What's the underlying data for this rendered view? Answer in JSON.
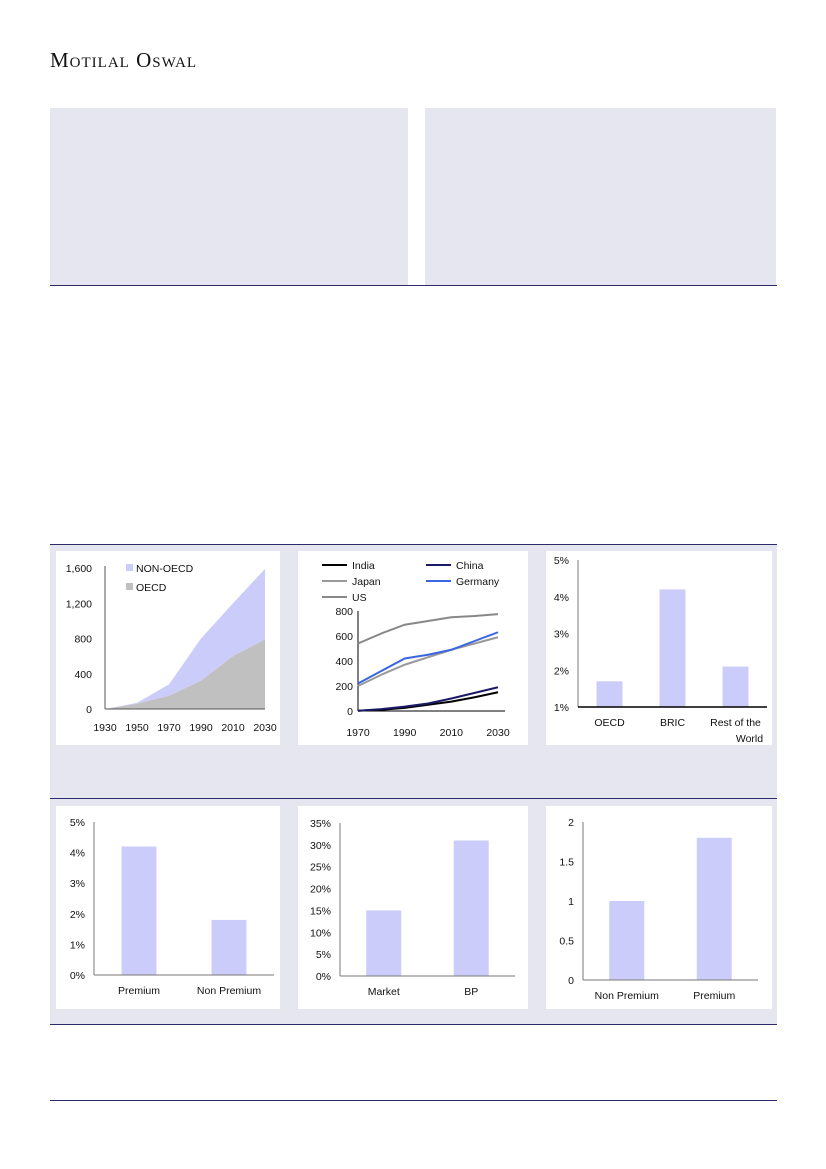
{
  "header": {
    "brand": "Motilal Oswal"
  },
  "colors": {
    "bar": "#ccccfa",
    "non_oecd": "#ccccfa",
    "oecd": "#c0c0c0",
    "rule": "#2b2b6b",
    "box": "#e6e6f0"
  },
  "chart_data": [
    {
      "type": "area",
      "x": [
        1930,
        1950,
        1970,
        1990,
        2010,
        2030
      ],
      "xticks": [
        "1930",
        "1950",
        "1970",
        "1990",
        "2010",
        "2030"
      ],
      "yticks": [
        "0",
        "400",
        "800",
        "1,200",
        "1,600"
      ],
      "ylim": [
        0,
        1600
      ],
      "series": [
        {
          "name": "OECD",
          "values": [
            0,
            60,
            150,
            320,
            600,
            790
          ]
        },
        {
          "name": "NON-OECD",
          "values": [
            0,
            10,
            130,
            480,
            600,
            800
          ]
        }
      ],
      "legend": [
        "NON-OECD",
        "OECD"
      ]
    },
    {
      "type": "line",
      "x": [
        1970,
        1980,
        1990,
        2000,
        2010,
        2020,
        2030
      ],
      "xticks": [
        "1970",
        "1990",
        "2010",
        "2030"
      ],
      "yticks": [
        "0",
        "200",
        "400",
        "600",
        "800"
      ],
      "ylim": [
        0,
        800
      ],
      "series": [
        {
          "name": "India",
          "color": "#000000",
          "values": [
            2,
            10,
            25,
            50,
            75,
            110,
            150
          ]
        },
        {
          "name": "China",
          "color": "#1a1a66",
          "values": [
            2,
            15,
            35,
            60,
            100,
            145,
            190
          ]
        },
        {
          "name": "Japan",
          "color": "#999999",
          "values": [
            200,
            290,
            370,
            430,
            490,
            540,
            590
          ]
        },
        {
          "name": "Germany",
          "color": "#3a66e0",
          "values": [
            220,
            320,
            420,
            450,
            490,
            560,
            630
          ]
        },
        {
          "name": "US",
          "color": "#888888",
          "values": [
            540,
            620,
            690,
            720,
            750,
            760,
            775
          ]
        }
      ]
    },
    {
      "type": "bar",
      "categories": [
        "OECD",
        "BRIC",
        "Rest of the World"
      ],
      "values": [
        1.7,
        4.2,
        2.1
      ],
      "yticks": [
        "1%",
        "2%",
        "3%",
        "4%",
        "5%"
      ],
      "ylim": [
        1,
        5
      ]
    },
    {
      "type": "bar",
      "categories": [
        "Premium",
        "Non Premium"
      ],
      "values": [
        4.2,
        1.8
      ],
      "yticks": [
        "0%",
        "1%",
        "2%",
        "3%",
        "4%",
        "5%"
      ],
      "ylim": [
        0,
        5
      ]
    },
    {
      "type": "bar",
      "categories": [
        "Market",
        "BP"
      ],
      "values": [
        15,
        31
      ],
      "yticks": [
        "0%",
        "5%",
        "10%",
        "15%",
        "20%",
        "25%",
        "30%",
        "35%"
      ],
      "ylim": [
        0,
        35
      ]
    },
    {
      "type": "bar",
      "categories": [
        "Non Premium",
        "Premium"
      ],
      "values": [
        1.0,
        1.8
      ],
      "yticks": [
        "0",
        "0.5",
        "1",
        "1.5",
        "2"
      ],
      "ylim": [
        0,
        2
      ]
    }
  ]
}
